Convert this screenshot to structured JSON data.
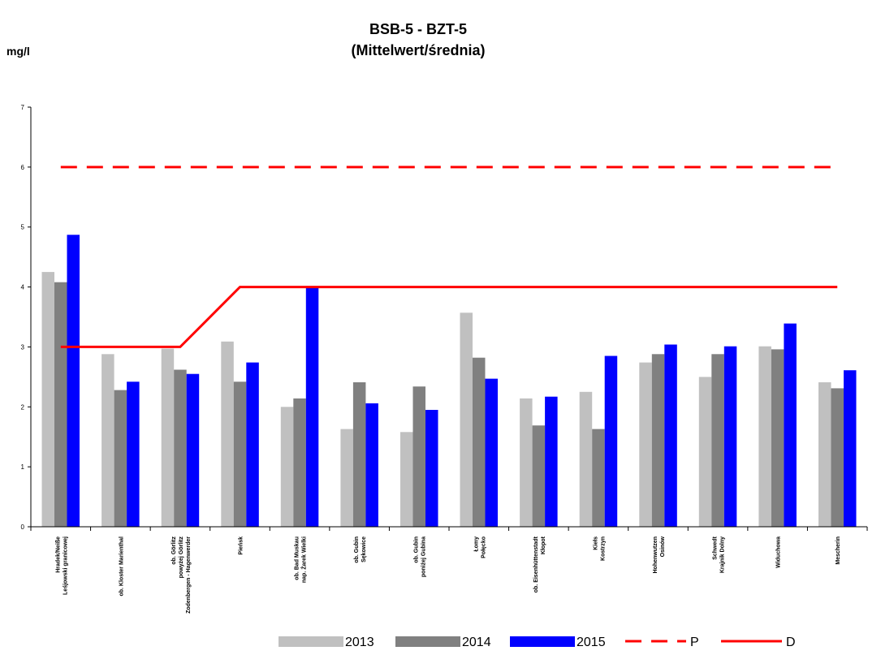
{
  "chart_data": {
    "type": "bar",
    "title": "BSB-5 - BZT-5",
    "subtitle": "(Mittelwert/średnia)",
    "ylabel": "mg/l",
    "ylim": [
      0,
      7
    ],
    "yticks": [
      0,
      1,
      2,
      3,
      4,
      5,
      6,
      7
    ],
    "categories": [
      [
        "Hradek/Neiße",
        "Leśjowski granicowej"
      ],
      [
        "ob. Kloster Marienthal"
      ],
      [
        "ob. Görlitz",
        "powyżej Görlitz",
        "Zodenbergen - Hagenwerder"
      ],
      [
        "Pieńsk"
      ],
      [
        "ob. Bad Muskau",
        "nap. Żarek Wielki"
      ],
      [
        "ob. Gubin",
        "Sękowice"
      ],
      [
        "ob. Gubin",
        "poniżej Gubina"
      ],
      [
        "Łomy",
        "Połęcko"
      ],
      [
        "ob. Eisenhüttenstadt",
        "Kłopot"
      ],
      [
        "Kiełs",
        "Kostrzyn"
      ],
      [
        "Hohenwutzen",
        "Osinów"
      ],
      [
        "Schwedt",
        "Krajnik Dolny"
      ],
      [
        "Widuchowa"
      ],
      [
        "Mescherin"
      ]
    ],
    "series": [
      {
        "name": "2013",
        "color": "#c0c0c0",
        "values": [
          4.25,
          2.88,
          2.97,
          3.09,
          2.0,
          1.63,
          1.58,
          3.57,
          2.14,
          2.25,
          2.74,
          2.5,
          3.01,
          2.41
        ]
      },
      {
        "name": "2014",
        "color": "#808080",
        "values": [
          4.08,
          2.28,
          2.62,
          2.42,
          2.14,
          2.41,
          2.34,
          2.82,
          1.69,
          1.63,
          2.88,
          2.88,
          2.96,
          2.31
        ]
      },
      {
        "name": "2015",
        "color": "#0000ff",
        "values": [
          4.87,
          2.42,
          2.55,
          2.74,
          4.0,
          2.06,
          1.95,
          2.47,
          2.17,
          2.85,
          3.04,
          3.01,
          3.39,
          2.61
        ]
      }
    ],
    "reference_lines": [
      {
        "name": "P",
        "style": "dashed",
        "color": "#ff0000",
        "values": [
          6,
          6,
          6,
          6,
          6,
          6,
          6,
          6,
          6,
          6,
          6,
          6,
          6,
          6
        ]
      },
      {
        "name": "D",
        "style": "solid",
        "color": "#ff0000",
        "values": [
          3,
          3,
          3,
          4,
          4,
          4,
          4,
          4,
          4,
          4,
          4,
          4,
          4,
          4
        ]
      }
    ],
    "legend_position": "bottom",
    "grid": false
  }
}
